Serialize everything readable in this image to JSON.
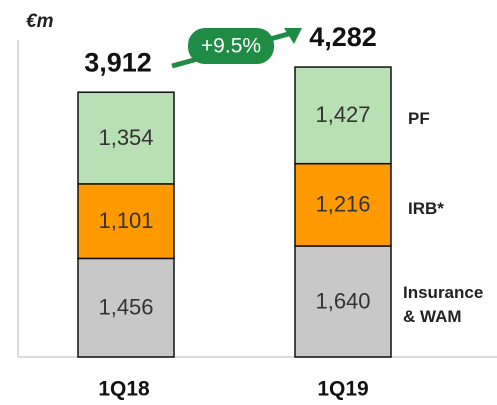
{
  "chart_data": {
    "type": "stacked_bar",
    "unit_label": "€m",
    "categories": [
      "1Q18",
      "1Q19"
    ],
    "series": [
      {
        "name": "Insurance & WAM",
        "color": "#c8c8c8",
        "values": [
          1456,
          1640
        ],
        "value_labels": [
          "1,456",
          "1,640"
        ]
      },
      {
        "name": "IRB*",
        "color": "#ff9900",
        "values": [
          1101,
          1216
        ],
        "value_labels": [
          "1,101",
          "1,216"
        ]
      },
      {
        "name": "PF",
        "color": "#b9e0b4",
        "values": [
          1354,
          1427
        ],
        "value_labels": [
          "1,354",
          "1,427"
        ]
      }
    ],
    "totals": [
      3912,
      4282
    ],
    "total_labels": [
      "3,912",
      "4,282"
    ],
    "annotation": "+9.5%"
  }
}
